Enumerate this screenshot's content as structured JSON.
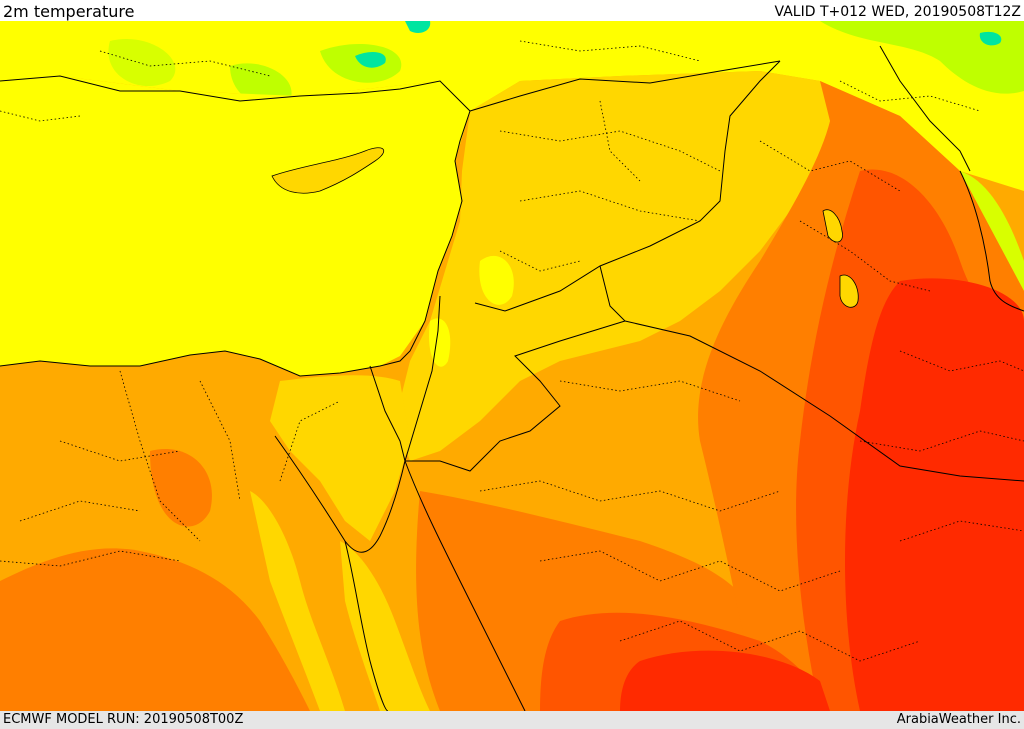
{
  "header": {
    "title": "2m temperature",
    "valid": "VALID T+012 WED, 20190508T12Z"
  },
  "footer": {
    "model_run": "ECMWF MODEL RUN: 20190508T00Z",
    "credit": "ArabiaWeather Inc."
  },
  "map": {
    "region": "Eastern Mediterranean and Middle East",
    "colors": {
      "sea_yellow": "#ffff00",
      "light_orange": "#ffd700",
      "orange": "#ffaa00",
      "dark_orange": "#ff7f00",
      "red_orange": "#ff5500",
      "red": "#ff2a00",
      "green": "#bfff00",
      "cyan": "#00e5a0",
      "border": "#000000"
    }
  }
}
